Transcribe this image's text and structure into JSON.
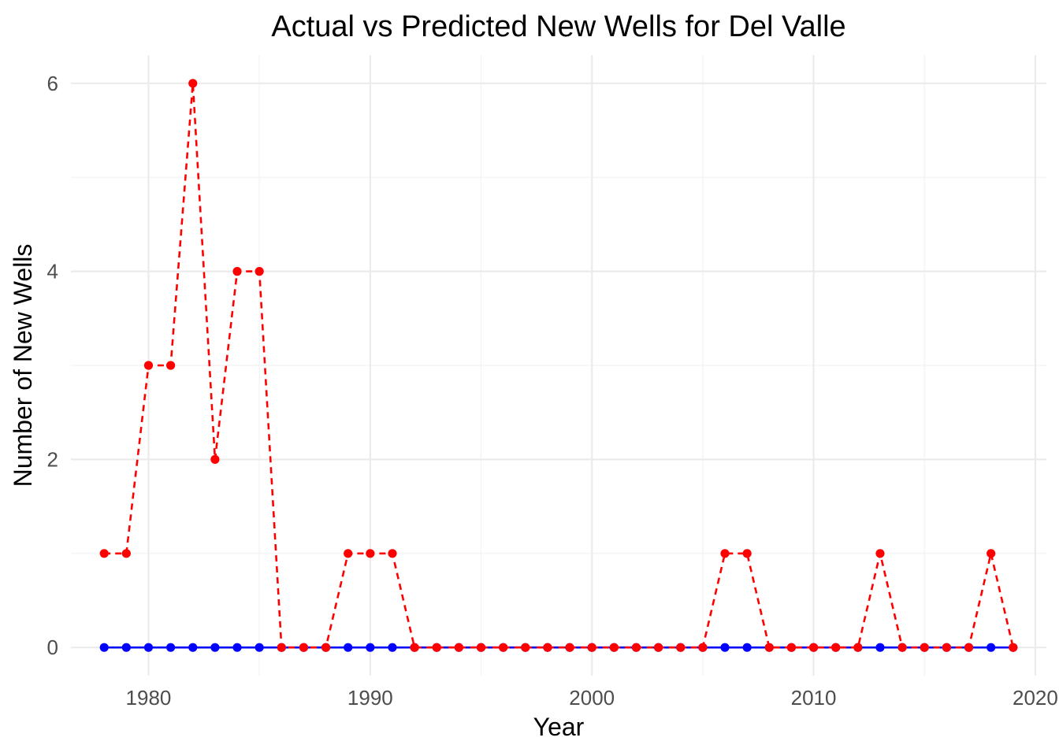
{
  "chart_data": {
    "type": "line",
    "title": "Actual vs Predicted New Wells for Del Valle",
    "xlabel": "Year",
    "ylabel": "Number of New Wells",
    "xlim": [
      1976.5,
      2020.5
    ],
    "ylim": [
      -0.3,
      6.3
    ],
    "x_major_ticks": [
      1980,
      1990,
      2000,
      2010,
      2020
    ],
    "x_tick_labels": [
      "1980",
      "1990",
      "2000",
      "2010",
      "2020"
    ],
    "x_minor_ticks": [
      1985,
      1995,
      2005,
      2015
    ],
    "y_major_ticks": [
      0,
      2,
      4,
      6
    ],
    "y_tick_labels": [
      "0",
      "2",
      "4",
      "6"
    ],
    "y_minor_ticks": [
      1,
      3,
      5
    ],
    "grid": true,
    "legend": "none",
    "x": [
      1978,
      1979,
      1980,
      1981,
      1982,
      1983,
      1984,
      1985,
      1986,
      1987,
      1988,
      1989,
      1990,
      1991,
      1992,
      1993,
      1994,
      1995,
      1996,
      1997,
      1998,
      1999,
      2000,
      2001,
      2002,
      2003,
      2004,
      2005,
      2006,
      2007,
      2008,
      2009,
      2010,
      2011,
      2012,
      2013,
      2014,
      2015,
      2016,
      2017,
      2018,
      2019
    ],
    "series": [
      {
        "color": "#0000ff",
        "line_style": "solid",
        "values": [
          0,
          0,
          0,
          0,
          0,
          0,
          0,
          0,
          0,
          0,
          0,
          0,
          0,
          0,
          0,
          0,
          0,
          0,
          0,
          0,
          0,
          0,
          0,
          0,
          0,
          0,
          0,
          0,
          0,
          0,
          0,
          0,
          0,
          0,
          0,
          0,
          0,
          0,
          0,
          0,
          0,
          0
        ]
      },
      {
        "color": "#ff0000",
        "line_style": "dashed",
        "values": [
          1,
          1,
          3,
          3,
          6,
          2,
          4,
          4,
          0,
          0,
          0,
          1,
          1,
          1,
          0,
          0,
          0,
          0,
          0,
          0,
          0,
          0,
          0,
          0,
          0,
          0,
          0,
          0,
          1,
          1,
          0,
          0,
          0,
          0,
          0,
          1,
          0,
          0,
          0,
          0,
          1,
          0
        ]
      }
    ]
  }
}
